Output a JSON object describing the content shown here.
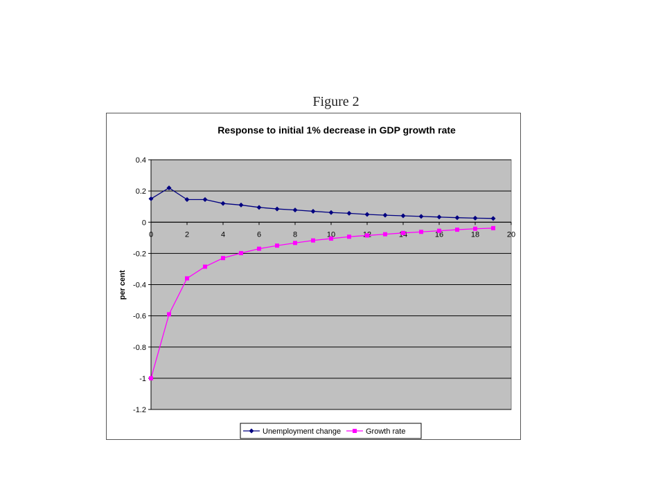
{
  "figure_label": "Figure 2",
  "chart_data": {
    "type": "line",
    "title": "Response to initial 1% decrease in GDP growth rate",
    "xlabel": "",
    "ylabel": "per cent",
    "xlim": [
      0,
      20
    ],
    "ylim": [
      -1.2,
      0.4
    ],
    "x_ticks": [
      "0",
      "2",
      "4",
      "6",
      "8",
      "10",
      "12",
      "14",
      "16",
      "18",
      "20"
    ],
    "y_ticks": [
      "0.4",
      "0.2",
      "0",
      "-0.2",
      "-0.4",
      "-0.6",
      "-0.8",
      "-1",
      "-1.2"
    ],
    "grid": true,
    "legend_position": "bottom",
    "x": [
      0,
      1,
      2,
      3,
      4,
      5,
      6,
      7,
      8,
      9,
      10,
      11,
      12,
      13,
      14,
      15,
      16,
      17,
      18,
      19
    ],
    "series": [
      {
        "name": "Unemployment change",
        "color": "#000080",
        "marker": "diamond",
        "values": [
          0.15,
          0.22,
          0.145,
          0.145,
          0.12,
          0.11,
          0.095,
          0.085,
          0.078,
          0.07,
          0.062,
          0.057,
          0.05,
          0.045,
          0.041,
          0.037,
          0.033,
          0.029,
          0.026,
          0.024
        ]
      },
      {
        "name": "Growth rate",
        "color": "#ff00ff",
        "marker": "square",
        "values": [
          -1.0,
          -0.59,
          -0.36,
          -0.285,
          -0.23,
          -0.198,
          -0.17,
          -0.15,
          -0.133,
          -0.117,
          -0.105,
          -0.093,
          -0.085,
          -0.077,
          -0.069,
          -0.062,
          -0.055,
          -0.048,
          -0.042,
          -0.038
        ]
      }
    ]
  }
}
